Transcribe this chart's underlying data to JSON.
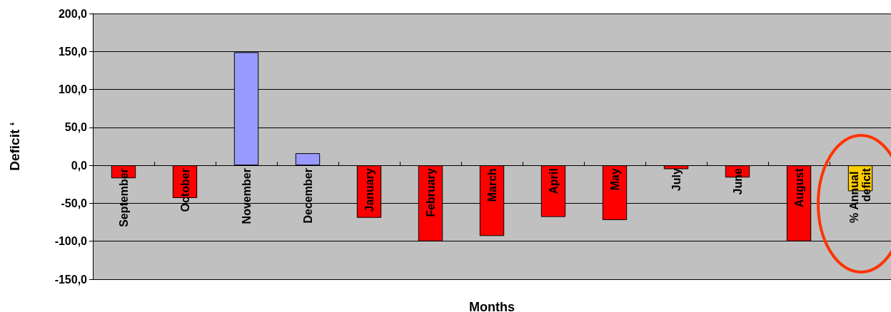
{
  "chart_data": {
    "type": "bar",
    "xlabel": "Months",
    "ylabel": "Deficit ‘",
    "categories": [
      "September",
      "October",
      "November",
      "December",
      "January",
      "February",
      "March",
      "April",
      "May",
      "July",
      "June",
      "August",
      "% Annual deficit"
    ],
    "values": [
      -17,
      -43,
      149,
      16,
      -69,
      -100,
      -93,
      -68,
      -72,
      -5,
      -16,
      -100,
      -34
    ],
    "colors": [
      "#ff0000",
      "#ff0000",
      "#9999ff",
      "#9999ff",
      "#ff0000",
      "#ff0000",
      "#ff0000",
      "#ff0000",
      "#ff0000",
      "#ff0000",
      "#ff0000",
      "#ff0000",
      "#ffcc00"
    ],
    "ylim": [
      -150,
      200
    ],
    "yticks": [
      {
        "value": -150,
        "label": "-150,0"
      },
      {
        "value": -100,
        "label": "-100,0"
      },
      {
        "value": -50,
        "label": "-50,0"
      },
      {
        "value": 0,
        "label": "0,0"
      },
      {
        "value": 50,
        "label": "50,0"
      },
      {
        "value": 100,
        "label": "100,0"
      },
      {
        "value": 150,
        "label": "150,0"
      },
      {
        "value": 200,
        "label": "200,0"
      }
    ],
    "grid": "y"
  }
}
